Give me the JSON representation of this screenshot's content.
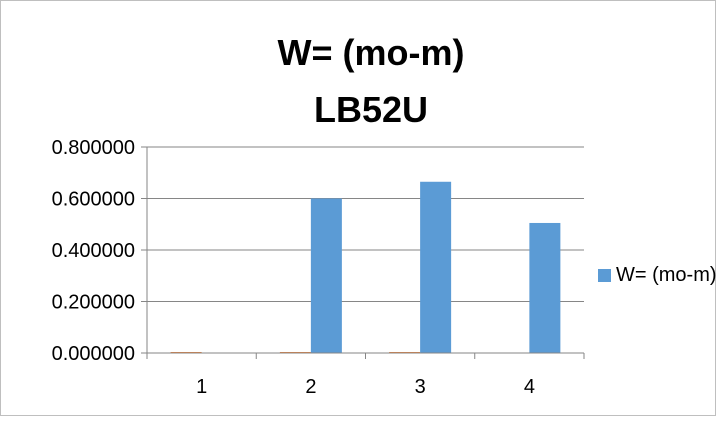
{
  "chart_data": {
    "type": "bar",
    "title": "W= (mo-m)",
    "subtitle": "LB52U",
    "xlabel": "",
    "ylabel": "",
    "categories": [
      "1",
      "2",
      "3",
      "4"
    ],
    "ylim": [
      0,
      0.8
    ],
    "yticks": [
      "0.000000",
      "0.200000",
      "0.400000",
      "0.600000",
      "0.800000"
    ],
    "grid": true,
    "legend_position": "right",
    "series": [
      {
        "name": "",
        "color": "#ed7d31",
        "values": [
          0.003,
          0.003,
          0.003,
          0
        ]
      },
      {
        "name": "W= (mo-m)",
        "color": "#5b9bd5",
        "values": [
          0,
          0.6,
          0.665,
          0.505
        ]
      }
    ]
  }
}
